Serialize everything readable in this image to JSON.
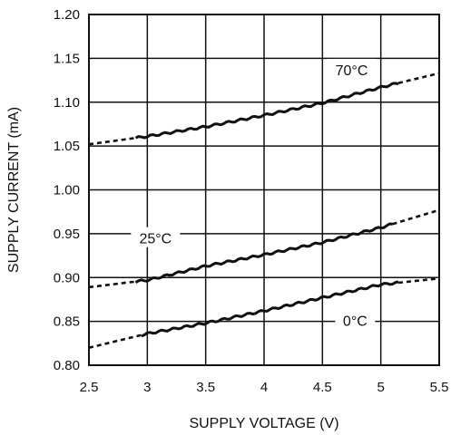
{
  "chart_data": {
    "type": "line",
    "title": "",
    "xlabel": "SUPPLY VOLTAGE (V)",
    "ylabel": "SUPPLY CURRENT (mA)",
    "xlim": [
      2.5,
      5.5
    ],
    "ylim": [
      0.8,
      1.2
    ],
    "x_ticks": [
      "2.5",
      "3",
      "3.5",
      "4",
      "4.5",
      "5",
      "5.5"
    ],
    "y_ticks": [
      "0.80",
      "0.85",
      "0.90",
      "0.95",
      "1.00",
      "1.05",
      "1.10",
      "1.15",
      "1.20"
    ],
    "grid": true,
    "series": [
      {
        "name": "70°C",
        "x": [
          2.5,
          3.0,
          3.5,
          4.0,
          4.5,
          5.0,
          5.5
        ],
        "y": [
          1.052,
          1.061,
          1.072,
          1.085,
          1.099,
          1.117,
          1.133
        ],
        "measured_range": [
          2.9,
          5.15
        ]
      },
      {
        "name": "25°C",
        "x": [
          2.5,
          3.0,
          3.5,
          4.0,
          4.5,
          5.0,
          5.5
        ],
        "y": [
          0.889,
          0.897,
          0.913,
          0.926,
          0.94,
          0.957,
          0.977
        ],
        "measured_range": [
          2.9,
          5.1
        ]
      },
      {
        "name": "0°C",
        "x": [
          2.5,
          3.0,
          3.5,
          4.0,
          4.5,
          5.0,
          5.5
        ],
        "y": [
          0.82,
          0.836,
          0.848,
          0.862,
          0.877,
          0.892,
          0.899
        ],
        "measured_range": [
          2.95,
          5.15
        ]
      }
    ]
  }
}
